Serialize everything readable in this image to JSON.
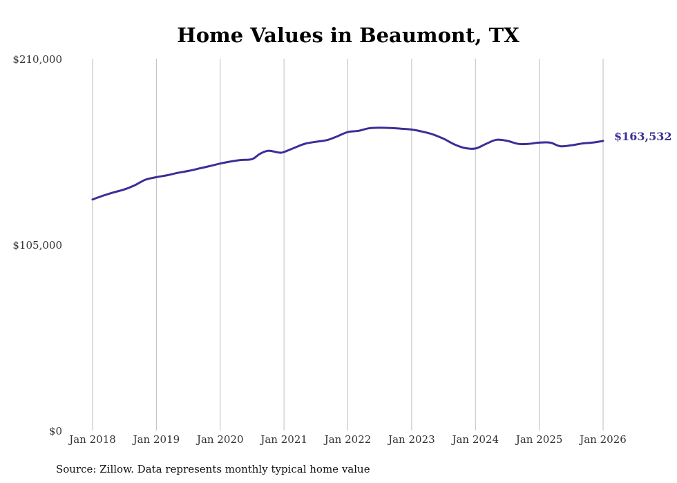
{
  "chart_data": {
    "type": "line",
    "title": "Home Values in Beaumont, TX",
    "xlabel": "",
    "ylabel": "",
    "ylim": [
      0,
      210000
    ],
    "y_ticks": [
      0,
      105000,
      210000
    ],
    "y_tick_labels": [
      "$0",
      "$105,000",
      "$210,000"
    ],
    "x_ticks": [
      2018,
      2019,
      2020,
      2021,
      2022,
      2023,
      2024,
      2025,
      2026
    ],
    "x_tick_labels": [
      "Jan 2018",
      "Jan 2019",
      "Jan 2020",
      "Jan 2021",
      "Jan 2022",
      "Jan 2023",
      "Jan 2024",
      "Jan 2025",
      "Jan 2026"
    ],
    "grid": "vertical",
    "series": [
      {
        "name": "Typical home value",
        "color": "#3a2f96",
        "end_label": "$163,532",
        "points": [
          [
            2018.0,
            130500
          ],
          [
            2018.17,
            132700
          ],
          [
            2018.33,
            134500
          ],
          [
            2018.5,
            136200
          ],
          [
            2018.67,
            138700
          ],
          [
            2018.83,
            141700
          ],
          [
            2019.0,
            143100
          ],
          [
            2019.17,
            144200
          ],
          [
            2019.33,
            145500
          ],
          [
            2019.5,
            146600
          ],
          [
            2019.67,
            148000
          ],
          [
            2019.83,
            149300
          ],
          [
            2020.0,
            150800
          ],
          [
            2020.17,
            152000
          ],
          [
            2020.33,
            152800
          ],
          [
            2020.5,
            153300
          ],
          [
            2020.62,
            156200
          ],
          [
            2020.75,
            158000
          ],
          [
            2020.92,
            157000
          ],
          [
            2021.0,
            157300
          ],
          [
            2021.17,
            159800
          ],
          [
            2021.33,
            162000
          ],
          [
            2021.5,
            163100
          ],
          [
            2021.67,
            164000
          ],
          [
            2021.83,
            166100
          ],
          [
            2022.0,
            168600
          ],
          [
            2022.17,
            169300
          ],
          [
            2022.33,
            170700
          ],
          [
            2022.5,
            171000
          ],
          [
            2022.67,
            170900
          ],
          [
            2022.83,
            170500
          ],
          [
            2023.0,
            170000
          ],
          [
            2023.17,
            168800
          ],
          [
            2023.33,
            167300
          ],
          [
            2023.5,
            164800
          ],
          [
            2023.67,
            161600
          ],
          [
            2023.83,
            159600
          ],
          [
            2024.0,
            159300
          ],
          [
            2024.17,
            162000
          ],
          [
            2024.33,
            164200
          ],
          [
            2024.5,
            163600
          ],
          [
            2024.67,
            161900
          ],
          [
            2024.83,
            161900
          ],
          [
            2025.0,
            162600
          ],
          [
            2025.17,
            162600
          ],
          [
            2025.33,
            160600
          ],
          [
            2025.5,
            161100
          ],
          [
            2025.67,
            162100
          ],
          [
            2025.83,
            162600
          ],
          [
            2026.0,
            163532
          ]
        ]
      }
    ]
  },
  "footer": {
    "source": "Source: Zillow. Data represents monthly typical home value"
  }
}
